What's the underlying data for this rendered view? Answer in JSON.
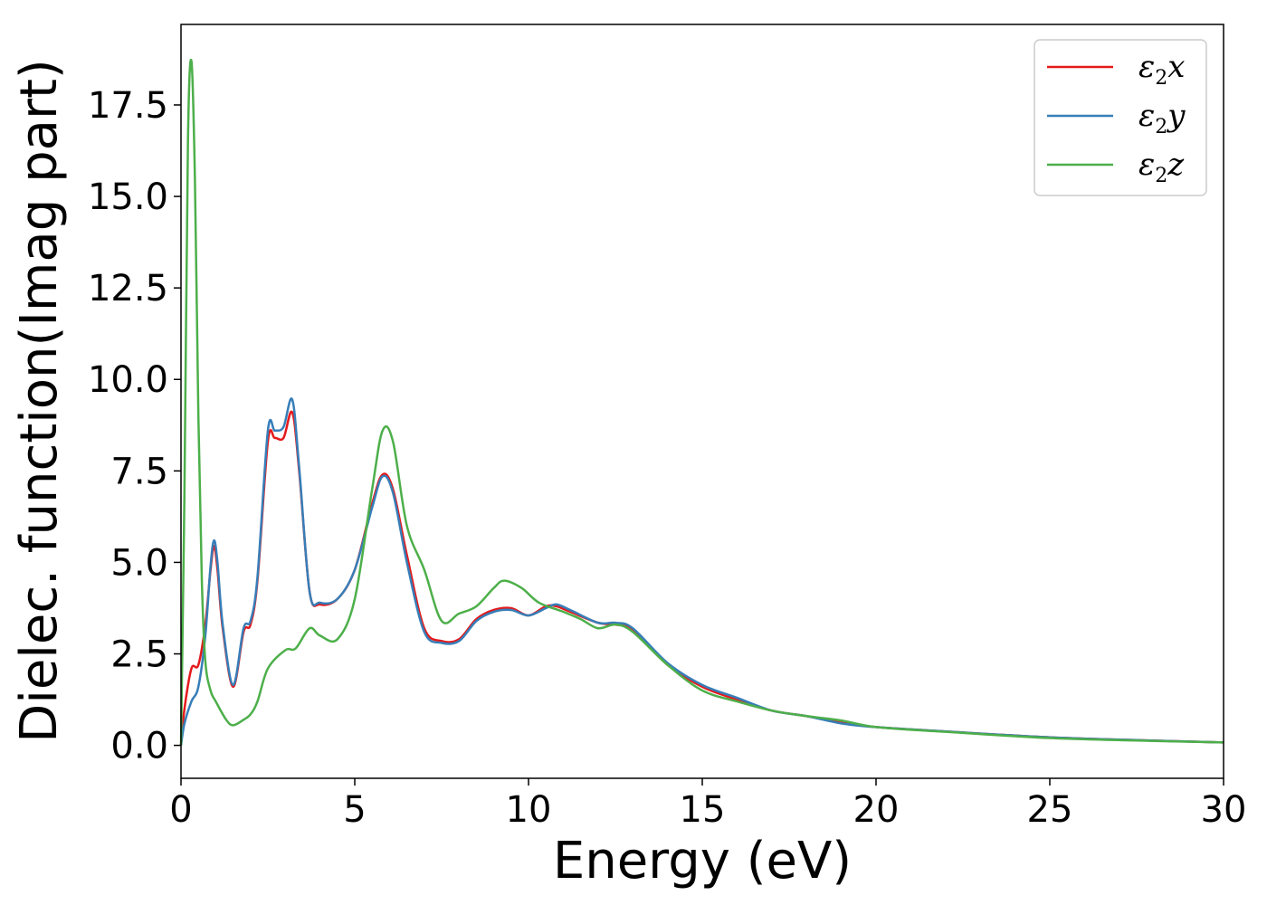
{
  "chart_data": {
    "type": "line",
    "xlabel": "Energy (eV)",
    "ylabel": "Dielec. function(Imag part)",
    "xlim": [
      0,
      30
    ],
    "ylim": [
      -0.9,
      19.7
    ],
    "xticks": [
      0,
      5,
      10,
      15,
      20,
      25,
      30
    ],
    "xtick_labels": [
      "0",
      "5",
      "10",
      "15",
      "20",
      "25",
      "30"
    ],
    "yticks": [
      0.0,
      2.5,
      5.0,
      7.5,
      10.0,
      12.5,
      15.0,
      17.5
    ],
    "ytick_labels": [
      "0.0",
      "2.5",
      "5.0",
      "7.5",
      "10.0",
      "12.5",
      "15.0",
      "17.5"
    ],
    "grid": false,
    "legend_position": "top-right",
    "series": [
      {
        "name": "ε2x",
        "symbol": "ε",
        "subscript": "2",
        "suffix": "x",
        "color": "#e41a1c",
        "x": [
          0,
          0.1,
          0.3,
          0.5,
          0.7,
          0.85,
          0.95,
          1.05,
          1.2,
          1.5,
          1.8,
          2.0,
          2.2,
          2.5,
          2.7,
          2.95,
          3.2,
          3.4,
          3.7,
          4.0,
          4.5,
          5.0,
          5.5,
          5.8,
          6.1,
          6.5,
          7.0,
          7.5,
          8.0,
          8.5,
          9.0,
          9.5,
          10.0,
          10.5,
          10.8,
          11.2,
          12.0,
          12.5,
          13.0,
          14.0,
          15.0,
          16.0,
          17.0,
          18.0,
          19.0,
          20.0,
          22.0,
          25.0,
          28.0,
          30.0
        ],
        "y": [
          0.0,
          1.0,
          2.1,
          2.2,
          3.3,
          4.8,
          5.45,
          4.8,
          3.2,
          1.6,
          3.1,
          3.3,
          4.5,
          8.3,
          8.4,
          8.4,
          9.1,
          7.5,
          4.2,
          3.85,
          4.0,
          4.8,
          6.6,
          7.4,
          7.0,
          5.2,
          3.2,
          2.85,
          2.9,
          3.45,
          3.7,
          3.75,
          3.55,
          3.8,
          3.8,
          3.65,
          3.35,
          3.3,
          3.15,
          2.2,
          1.6,
          1.25,
          0.95,
          0.8,
          0.62,
          0.5,
          0.38,
          0.22,
          0.13,
          0.08
        ]
      },
      {
        "name": "ε2y",
        "symbol": "ε",
        "subscript": "2",
        "suffix": "y",
        "color": "#377eb8",
        "x": [
          0,
          0.1,
          0.3,
          0.5,
          0.7,
          0.85,
          0.95,
          1.05,
          1.2,
          1.5,
          1.8,
          2.0,
          2.2,
          2.5,
          2.7,
          2.95,
          3.2,
          3.4,
          3.7,
          4.0,
          4.5,
          5.0,
          5.5,
          5.8,
          6.1,
          6.5,
          7.0,
          7.5,
          8.0,
          8.5,
          9.0,
          9.5,
          10.0,
          10.5,
          10.8,
          11.2,
          12.0,
          12.5,
          13.0,
          14.0,
          15.0,
          16.0,
          17.0,
          18.0,
          19.0,
          20.0,
          22.0,
          25.0,
          28.0,
          30.0
        ],
        "y": [
          0.0,
          0.6,
          1.2,
          1.6,
          3.0,
          4.9,
          5.6,
          5.0,
          3.3,
          1.65,
          3.2,
          3.4,
          4.6,
          8.6,
          8.6,
          8.7,
          9.45,
          7.6,
          4.2,
          3.9,
          4.0,
          4.8,
          6.5,
          7.35,
          6.9,
          5.0,
          3.1,
          2.8,
          2.85,
          3.4,
          3.65,
          3.7,
          3.55,
          3.75,
          3.85,
          3.7,
          3.35,
          3.35,
          3.2,
          2.25,
          1.65,
          1.3,
          0.95,
          0.8,
          0.6,
          0.5,
          0.38,
          0.22,
          0.13,
          0.08
        ]
      },
      {
        "name": "ε2z",
        "symbol": "ε",
        "subscript": "2",
        "suffix": "z",
        "color": "#4daf4a",
        "x": [
          0,
          0.1,
          0.2,
          0.3,
          0.4,
          0.5,
          0.6,
          0.7,
          0.85,
          1.0,
          1.3,
          1.5,
          1.8,
          2.0,
          2.2,
          2.5,
          3.0,
          3.3,
          3.7,
          4.0,
          4.5,
          5.0,
          5.5,
          5.8,
          6.1,
          6.5,
          7.0,
          7.5,
          8.0,
          8.5,
          9.0,
          9.3,
          9.8,
          10.3,
          11.0,
          11.5,
          12.0,
          12.5,
          13.0,
          14.0,
          15.0,
          16.0,
          17.0,
          18.0,
          19.0,
          20.0,
          22.0,
          25.0,
          28.0,
          30.0
        ],
        "y": [
          0.0,
          7.0,
          16.5,
          18.7,
          15.5,
          9.0,
          4.5,
          2.3,
          1.5,
          1.2,
          0.7,
          0.55,
          0.7,
          0.85,
          1.2,
          2.1,
          2.6,
          2.65,
          3.2,
          3.0,
          2.9,
          4.0,
          7.0,
          8.6,
          8.3,
          6.0,
          4.8,
          3.4,
          3.6,
          3.8,
          4.3,
          4.5,
          4.3,
          3.9,
          3.65,
          3.45,
          3.2,
          3.3,
          3.1,
          2.2,
          1.5,
          1.2,
          0.95,
          0.8,
          0.68,
          0.5,
          0.37,
          0.2,
          0.12,
          0.08
        ]
      }
    ]
  }
}
